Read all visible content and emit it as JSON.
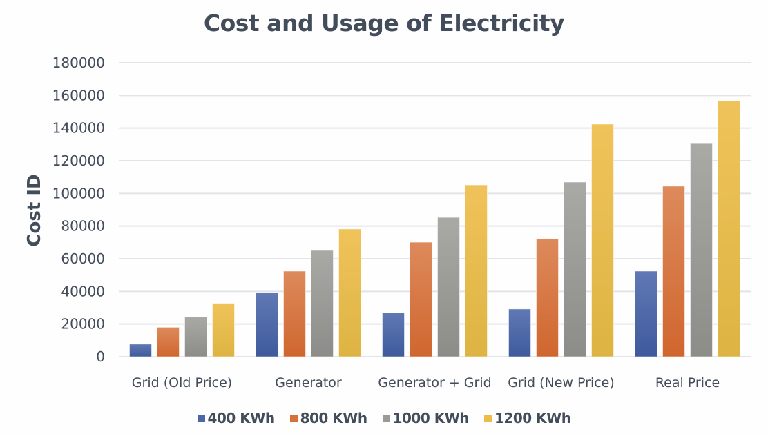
{
  "chart_data": {
    "type": "bar",
    "title": "Cost and Usage of Electricity",
    "xlabel": "",
    "ylabel": "Cost ID",
    "ylim": [
      0,
      180000
    ],
    "yticks": [
      0,
      20000,
      40000,
      60000,
      80000,
      100000,
      120000,
      140000,
      160000,
      180000
    ],
    "ytick_labels": [
      "0",
      "20000",
      "40000",
      "60000",
      "80000",
      "100000",
      "120000",
      "140000",
      "160000",
      "180000"
    ],
    "grid": true,
    "legend_position": "bottom",
    "categories": [
      "Grid (Old Price)",
      "Generator",
      "Generator + Grid",
      "Grid (New Price)",
      "Real Price"
    ],
    "series": [
      {
        "name": "400 KWh",
        "color": "#4a67a8",
        "values": [
          7700,
          39300,
          27000,
          29200,
          52400
        ]
      },
      {
        "name": "800 KWh",
        "color": "#d8703a",
        "values": [
          18000,
          52400,
          70100,
          72300,
          104400
        ]
      },
      {
        "name": "1000 KWh",
        "color": "#9a9a96",
        "values": [
          24500,
          65100,
          85300,
          106900,
          130500
        ]
      },
      {
        "name": "1200 KWh",
        "color": "#eebd45",
        "values": [
          32700,
          78200,
          105200,
          142400,
          156700
        ]
      }
    ]
  }
}
